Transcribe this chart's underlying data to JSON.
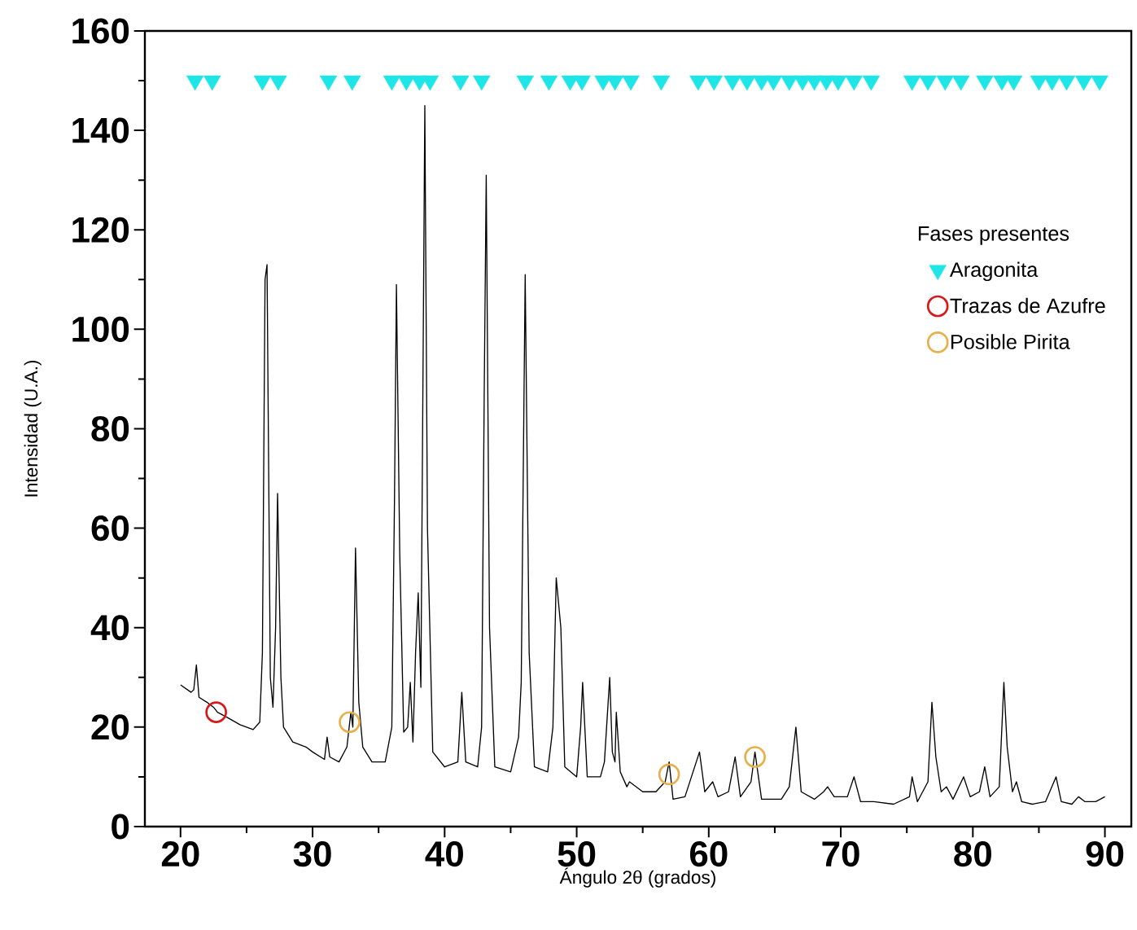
{
  "chart_data": {
    "type": "line",
    "xlabel": "Ángulo 2θ (grados)",
    "ylabel": "Intensidad (U.A.)",
    "legend_title": "Fases presentes",
    "legend": "right",
    "xlim": [
      17.3,
      92
    ],
    "ylim": [
      0,
      160
    ],
    "xticks": [
      20,
      30,
      40,
      50,
      60,
      70,
      80,
      90
    ],
    "yticks": [
      0,
      20,
      40,
      60,
      80,
      100,
      120,
      140,
      160
    ],
    "grid": false,
    "series": [
      {
        "color": "#000000",
        "line_style": "solid",
        "marker": "none",
        "x": [
          20,
          20.8,
          21.0,
          21.2,
          21.4,
          22,
          22.5,
          22.8,
          23.5,
          24.5,
          25.5,
          26.0,
          26.2,
          26.4,
          26.55,
          26.8,
          27.0,
          27.2,
          27.35,
          27.6,
          27.8,
          28.5,
          29.5,
          30,
          30.9,
          31.1,
          31.3,
          32,
          32.6,
          32.9,
          33.05,
          33.25,
          33.5,
          33.8,
          34.5,
          35.5,
          36.0,
          36.2,
          36.35,
          36.6,
          36.9,
          37.2,
          37.4,
          37.6,
          37.8,
          38.0,
          38.2,
          38.5,
          38.7,
          39.1,
          40,
          41,
          41.3,
          41.6,
          42.5,
          42.8,
          43.0,
          43.15,
          43.4,
          43.8,
          45,
          45.6,
          45.8,
          46.1,
          46.4,
          46.8,
          47.8,
          48.2,
          48.45,
          48.8,
          49.1,
          50,
          50.3,
          50.45,
          50.8,
          51.8,
          52.1,
          52.5,
          52.7,
          52.9,
          53.0,
          53.3,
          53.8,
          54.0,
          55,
          56,
          56.7,
          57.0,
          57.3,
          58.2,
          59.3,
          59.7,
          60.3,
          60.7,
          61.5,
          62.0,
          62.4,
          63.2,
          63.5,
          64.0,
          65.5,
          66.1,
          66.6,
          67.0,
          68.0,
          68.7,
          69.0,
          69.5,
          70.5,
          71.0,
          71.5,
          72.5,
          74,
          75.2,
          75.4,
          75.8,
          76.6,
          76.9,
          77.2,
          77.6,
          78.0,
          78.5,
          79.3,
          79.8,
          80.5,
          80.9,
          81.3,
          82.0,
          82.35,
          82.6,
          83.0,
          83.3,
          83.7,
          84.5,
          85.5,
          86.3,
          86.7,
          87.5,
          88.0,
          88.5,
          89.3,
          90
        ],
        "values": [
          28.5,
          27,
          27.5,
          32.5,
          26,
          25,
          24,
          23,
          22,
          20.5,
          19.5,
          21,
          35,
          110,
          113,
          30,
          24,
          40,
          67,
          30,
          20,
          17,
          16,
          15,
          13.5,
          18,
          14,
          13,
          16,
          23,
          20,
          56,
          25,
          16,
          13,
          13,
          20,
          65,
          109,
          55,
          19,
          20,
          29,
          17,
          35,
          47,
          28,
          145,
          60,
          15,
          12,
          13,
          27,
          13,
          12,
          20,
          88,
          131,
          40,
          12,
          11,
          18,
          29,
          111,
          35,
          12,
          11,
          20,
          50,
          40,
          12,
          10,
          20,
          29,
          10,
          10,
          13,
          30,
          15,
          13,
          23,
          11,
          8,
          9,
          7,
          7,
          9,
          13,
          5.5,
          6,
          15,
          7,
          9,
          6,
          7,
          14,
          6,
          9,
          15,
          5.5,
          5.5,
          8,
          20,
          7,
          5.5,
          7,
          8,
          6,
          6,
          10,
          5,
          5,
          4.5,
          6,
          10,
          5,
          9,
          25,
          14,
          7,
          8,
          5.5,
          10,
          6,
          7,
          12,
          6,
          8,
          29,
          16,
          7,
          9,
          5,
          4.5,
          5,
          10,
          5,
          4.5,
          6,
          5,
          5,
          6
        ]
      },
      {
        "type": "scatter",
        "name": "Aragonita",
        "color": "#1ee6e6",
        "marker": "triangle down",
        "x": [
          21.1,
          22.4,
          26.2,
          27.4,
          31.2,
          33.0,
          36.0,
          37.1,
          38.1,
          38.9,
          41.2,
          42.8,
          46.1,
          47.9,
          49.5,
          50.4,
          52.0,
          52.9,
          54.1,
          56.4,
          59.2,
          60.4,
          61.8,
          62.9,
          64.0,
          64.9,
          66.1,
          67.1,
          68.0,
          68.9,
          69.8,
          71.0,
          72.3,
          75.4,
          76.6,
          77.9,
          79.1,
          80.9,
          82.2,
          83.1,
          85.0,
          86.0,
          87.1,
          88.4,
          89.6
        ],
        "values": [
          150,
          150,
          150,
          150,
          150,
          150,
          150,
          150,
          150,
          150,
          150,
          150,
          150,
          150,
          150,
          150,
          150,
          150,
          150,
          150,
          150,
          150,
          150,
          150,
          150,
          150,
          150,
          150,
          150,
          150,
          150,
          150,
          150,
          150,
          150,
          150,
          150,
          150,
          150,
          150,
          150,
          150,
          150,
          150,
          150
        ]
      },
      {
        "type": "scatter",
        "name": "Trazas de Azufre",
        "color": "#d7191c",
        "marker": "circle",
        "x": [
          22.7
        ],
        "values": [
          23
        ]
      },
      {
        "type": "scatter",
        "name": "Posible Pirita",
        "color": "#e8b04a",
        "marker": "circle",
        "x": [
          32.8,
          57.0,
          63.5
        ],
        "values": [
          21,
          10.5,
          14
        ]
      }
    ]
  }
}
